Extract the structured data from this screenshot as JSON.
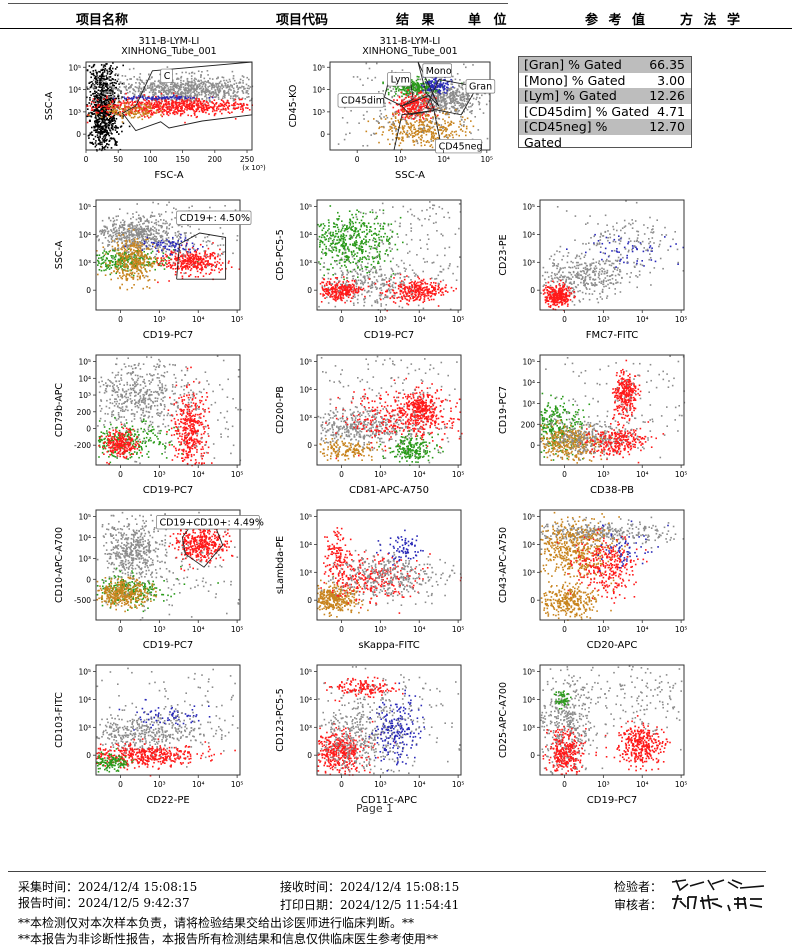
{
  "header": {
    "col_item_name": "项目名称",
    "col_item_code": "项目代码",
    "col_result": "结 果",
    "col_unit": "单 位",
    "col_reference": "参 考 值",
    "col_method": "方 法 学"
  },
  "sample": {
    "title_line1": "311-B-LYM-LI",
    "title_line2": "XINHONG_Tube_001"
  },
  "colors": {
    "gray": "#8c8c8c",
    "red": "#ff1a1a",
    "green": "#2a9a1a",
    "orange": "#c8841e",
    "blue": "#2a2ab8",
    "black": "#000000"
  },
  "gate_stats": [
    {
      "label": "[Gran] % Gated",
      "value": "66.35"
    },
    {
      "label": "[Mono] % Gated",
      "value": "3.00"
    },
    {
      "label": "[Lym] % Gated",
      "value": "12.26"
    },
    {
      "label": "[CD45dim] % Gated",
      "value": "4.71"
    },
    {
      "label": "[CD45neg] % Gated",
      "value": "12.70"
    }
  ],
  "chart_data": [
    {
      "type": "scatter",
      "id": "fsc-ssc",
      "xlabel": "FSC-A",
      "ylabel": "SSC-A",
      "x_scale": "linear",
      "x_ticks": [
        "0",
        "50",
        "100",
        "150",
        "200",
        "250"
      ],
      "x_unit": "(x 10⁵)",
      "y_ticks": [
        "0",
        "10³",
        "10⁴",
        "10⁵"
      ],
      "gates": [
        {
          "name": "C"
        }
      ],
      "title": [
        "311-B-LYM-LI",
        "XINHONG_Tube_001"
      ]
    },
    {
      "type": "scatter",
      "id": "ssc-cd45",
      "xlabel": "SSC-A",
      "ylabel": "CD45-KO",
      "x_ticks": [
        "0",
        "10³",
        "10⁴",
        "10⁵"
      ],
      "y_ticks": [
        "0",
        "10³",
        "10⁴",
        "10⁵"
      ],
      "gates": [
        {
          "name": "Lym"
        },
        {
          "name": "Mono"
        },
        {
          "name": "Gran"
        },
        {
          "name": "CD45dim"
        },
        {
          "name": "CD45neg"
        }
      ],
      "title": [
        "311-B-LYM-LI",
        "XINHONG_Tube_001"
      ]
    },
    {
      "type": "scatter",
      "id": "cd19-ssc",
      "xlabel": "CD19-PC7",
      "ylabel": "SSC-A",
      "x_ticks": [
        "0",
        "10³",
        "10⁴",
        "10⁵"
      ],
      "y_ticks": [
        "0",
        "10³",
        "10⁴",
        "10⁵"
      ],
      "gates": [
        {
          "name": "CD19+",
          "label": "CD19+: 4.50%",
          "percent": 4.5
        }
      ]
    },
    {
      "type": "scatter",
      "id": "cd19-cd5",
      "xlabel": "CD19-PC7",
      "ylabel": "CD5-PC5-5",
      "x_ticks": [
        "0",
        "10³",
        "10⁴",
        "10⁵"
      ],
      "y_ticks": [
        "0",
        "10³",
        "10⁴",
        "10⁵"
      ]
    },
    {
      "type": "scatter",
      "id": "fmc7-cd23",
      "xlabel": "FMC7-FITC",
      "ylabel": "CD23-PE",
      "x_ticks": [
        "0",
        "10³",
        "10⁴",
        "10⁵"
      ],
      "y_ticks": [
        "0",
        "10³",
        "10⁴",
        "10⁵"
      ]
    },
    {
      "type": "scatter",
      "id": "cd19-cd79b",
      "xlabel": "CD19-PC7",
      "ylabel": "CD79b-APC",
      "x_ticks": [
        "0",
        "10³",
        "10⁴",
        "10⁵"
      ],
      "y_ticks": [
        "-200",
        "0",
        "200",
        "10³",
        "10⁴",
        "10⁵"
      ]
    },
    {
      "type": "scatter",
      "id": "cd81-cd200",
      "xlabel": "CD81-APC-A750",
      "ylabel": "CD200-PB",
      "x_ticks": [
        "0",
        "10³",
        "10⁴",
        "10⁵"
      ],
      "y_ticks": [
        "0",
        "10³",
        "10⁴",
        "10⁵"
      ]
    },
    {
      "type": "scatter",
      "id": "cd38-cd19",
      "xlabel": "CD38-PB",
      "ylabel": "CD19-PC7",
      "x_ticks": [
        "0",
        "10³",
        "10⁴",
        "10⁵"
      ],
      "y_ticks": [
        "0",
        "200",
        "10³",
        "10⁴",
        "10⁵"
      ]
    },
    {
      "type": "scatter",
      "id": "cd19-cd10",
      "xlabel": "CD19-PC7",
      "ylabel": "CD10-APC-A700",
      "x_ticks": [
        "0",
        "10³",
        "10⁴",
        "10⁵"
      ],
      "y_ticks": [
        "-500",
        "0",
        "10³",
        "10⁴",
        "10⁵"
      ],
      "gates": [
        {
          "name": "CD19+CD10+",
          "label": "CD19+CD10+: 4.49%",
          "percent": 4.49
        }
      ]
    },
    {
      "type": "scatter",
      "id": "kappa-lambda",
      "xlabel": "sKappa-FITC",
      "ylabel": "sLambda-PE",
      "x_ticks": [
        "0",
        "10³",
        "10⁴",
        "10⁵"
      ],
      "y_ticks": [
        "0",
        "10³",
        "10⁴",
        "10⁵"
      ]
    },
    {
      "type": "scatter",
      "id": "cd20-cd43",
      "xlabel": "CD20-APC",
      "ylabel": "CD43-APC-A750",
      "x_ticks": [
        "0",
        "10³",
        "10⁴",
        "10⁵"
      ],
      "y_ticks": [
        "0",
        "10³",
        "10⁴",
        "10⁵"
      ]
    },
    {
      "type": "scatter",
      "id": "cd22-cd103",
      "xlabel": "CD22-PE",
      "ylabel": "CD103-FITC",
      "x_ticks": [
        "0",
        "10³",
        "10⁴",
        "10⁵"
      ],
      "y_ticks": [
        "0",
        "10³",
        "10⁴",
        "10⁵"
      ]
    },
    {
      "type": "scatter",
      "id": "cd11c-cd123",
      "xlabel": "CD11c-APC",
      "ylabel": "CD123-PC5-5",
      "x_ticks": [
        "0",
        "10³",
        "10⁴",
        "10⁵"
      ],
      "y_ticks": [
        "0",
        "10³",
        "10⁴",
        "10⁵"
      ]
    },
    {
      "type": "scatter",
      "id": "cd19-cd25",
      "xlabel": "CD19-PC7",
      "ylabel": "CD25-APC-A700",
      "x_ticks": [
        "0",
        "10³",
        "10⁴",
        "10⁵"
      ],
      "y_ticks": [
        "0",
        "10³",
        "10⁴",
        "10⁵"
      ]
    }
  ],
  "page_label": "Page 1",
  "footer": {
    "collect_label": "采集时间：",
    "collect_time": "2024/12/4 15:08:15",
    "receive_label": "接收时间：",
    "receive_time": "2024/12/4 15:08:15",
    "report_label": "报告时间：",
    "report_time": "2024/12/5 9:42:37",
    "print_label": "打印日期：",
    "print_time": "2024/12/5 11:54:41",
    "tester_label": "检验者：",
    "reviewer_label": "审核者：",
    "note1": "**本检测仅对本次样本负责，请将检验结果交给出诊医师进行临床判断。**",
    "note2": "**本报告为非诊断性报告，本报告所有检测结果和信息仅供临床医生参考使用**"
  }
}
